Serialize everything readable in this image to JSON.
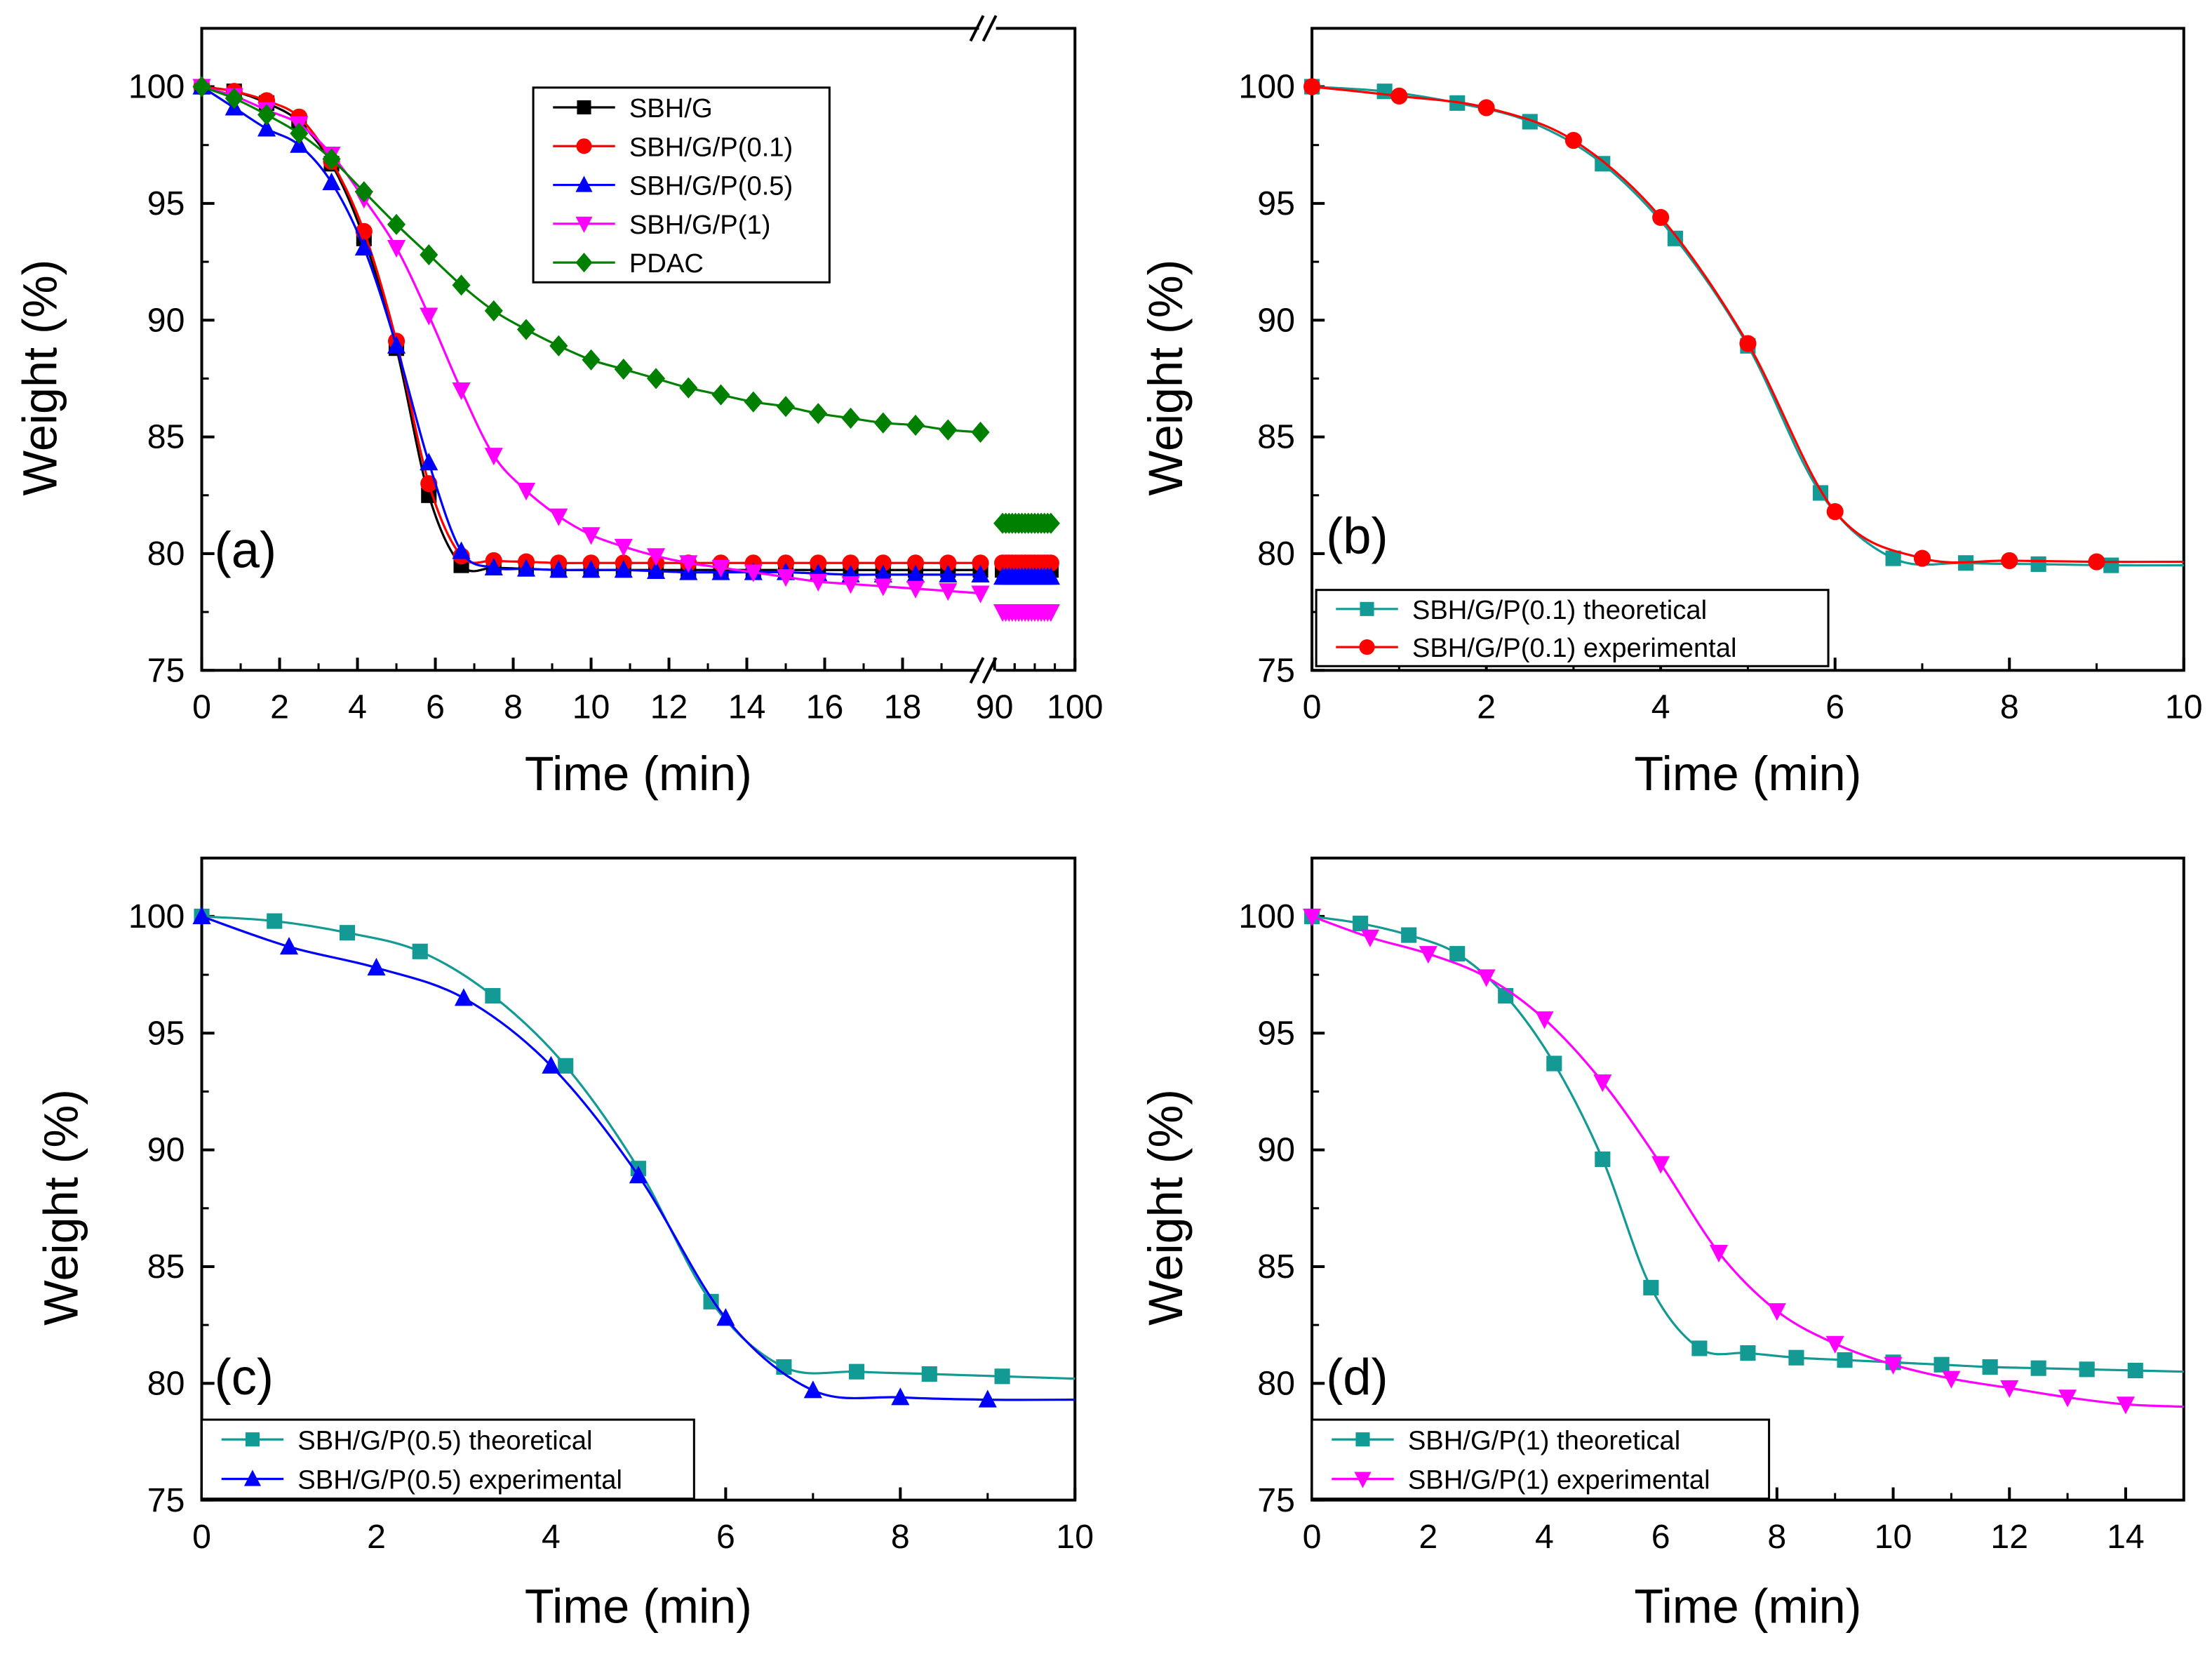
{
  "chart_data": [
    {
      "type": "line",
      "panel_label": "(a)",
      "xlabel": "Time (min)",
      "ylabel": "Weight (%)",
      "xlim_segments": [
        [
          0,
          20
        ],
        [
          90,
          100
        ]
      ],
      "ylim": [
        75,
        102.5
      ],
      "xticks": [
        "0",
        "2",
        "4",
        "6",
        "8",
        "10",
        "12",
        "14",
        "16",
        "18",
        "90",
        "100"
      ],
      "yticks": [
        "75",
        "80",
        "85",
        "90",
        "95",
        "100"
      ],
      "legend_position": "top-center",
      "series": [
        {
          "name": "SBH/G",
          "color": "#000000",
          "marker": "square",
          "y": [
            100,
            99.8,
            99.3,
            98.5,
            96.7,
            93.5,
            88.8,
            82.5,
            79.5,
            79.4,
            79.35,
            79.3,
            79.3,
            79.3,
            79.3,
            79.3,
            79.3,
            79.3,
            79.3,
            79.3,
            79.3,
            79.3,
            79.3,
            79.3,
            79.3
          ],
          "break_y": 79.3
        },
        {
          "name": "SBH/G/P(0.1)",
          "color": "#ff0000",
          "marker": "circle",
          "y": [
            100,
            99.8,
            99.4,
            98.7,
            96.8,
            93.8,
            89.1,
            83.0,
            79.9,
            79.7,
            79.65,
            79.6,
            79.6,
            79.6,
            79.6,
            79.6,
            79.6,
            79.6,
            79.6,
            79.6,
            79.6,
            79.6,
            79.6,
            79.6,
            79.6
          ],
          "break_y": 79.6
        },
        {
          "name": "SBH/G/P(0.5)",
          "color": "#0000ff",
          "marker": "triangle-up",
          "y": [
            100,
            99.1,
            98.2,
            97.5,
            95.9,
            93.1,
            88.9,
            83.9,
            80.1,
            79.4,
            79.35,
            79.3,
            79.3,
            79.3,
            79.25,
            79.2,
            79.2,
            79.2,
            79.2,
            79.15,
            79.1,
            79.1,
            79.1,
            79.1,
            79.1
          ],
          "break_y": 79.0
        },
        {
          "name": "SBH/G/P(1)",
          "color": "#ff00ff",
          "marker": "triangle-down",
          "y": [
            100,
            99.6,
            99.0,
            98.4,
            97.1,
            95.2,
            93.1,
            90.2,
            87.0,
            84.2,
            82.7,
            81.6,
            80.8,
            80.3,
            79.9,
            79.6,
            79.4,
            79.2,
            79.0,
            78.8,
            78.7,
            78.6,
            78.5,
            78.4,
            78.3
          ],
          "break_y": 77.5
        },
        {
          "name": "PDAC",
          "color": "#008000",
          "marker": "diamond",
          "y": [
            100,
            99.5,
            98.8,
            98.0,
            96.9,
            95.5,
            94.1,
            92.8,
            91.5,
            90.4,
            89.6,
            88.9,
            88.3,
            87.9,
            87.5,
            87.1,
            86.8,
            86.5,
            86.3,
            86.0,
            85.8,
            85.6,
            85.5,
            85.3,
            85.2
          ],
          "break_y": 81.3
        }
      ],
      "x": [
        0,
        0.833,
        1.667,
        2.5,
        3.333,
        4.167,
        5,
        5.833,
        6.667,
        7.5,
        8.333,
        9.167,
        10,
        10.833,
        11.667,
        12.5,
        13.333,
        14.167,
        15,
        15.833,
        16.667,
        17.5,
        18.333,
        19.167,
        20
      ],
      "break_x_range": [
        91,
        97
      ]
    },
    {
      "type": "line",
      "panel_label": "(b)",
      "xlabel": "Time (min)",
      "ylabel": "Weight (%)",
      "xlim": [
        0,
        10
      ],
      "ylim": [
        75,
        102.5
      ],
      "xticks": [
        "0",
        "2",
        "4",
        "6",
        "8",
        "10"
      ],
      "yticks": [
        "75",
        "80",
        "85",
        "90",
        "95",
        "100"
      ],
      "legend_position": "bottom-left",
      "series": [
        {
          "name": "SBH/G/P(0.1) theoretical",
          "color": "#139a94",
          "marker": "square",
          "x": [
            0,
            0.833,
            1.667,
            2.5,
            3.333,
            4.167,
            5,
            5.833,
            6.667,
            7.5,
            8.333,
            9.167
          ],
          "y": [
            100,
            99.8,
            99.3,
            98.5,
            96.7,
            93.5,
            88.9,
            82.6,
            79.8,
            79.6,
            79.55,
            79.5
          ],
          "curve_end_y": 79.5
        },
        {
          "name": "SBH/G/P(0.1) experimental",
          "color": "#ff0000",
          "marker": "circle",
          "x": [
            0,
            1,
            2,
            3,
            4,
            5,
            6,
            7,
            8,
            9
          ],
          "y": [
            100,
            99.6,
            99.1,
            97.7,
            94.4,
            89.0,
            81.8,
            79.8,
            79.7,
            79.65
          ],
          "curve_end_y": 79.65
        }
      ]
    },
    {
      "type": "line",
      "panel_label": "(c)",
      "xlabel": "Time (min)",
      "ylabel": "Weight (%)",
      "xlim": [
        0,
        10
      ],
      "ylim": [
        75,
        102.5
      ],
      "xticks": [
        "0",
        "2",
        "4",
        "6",
        "8",
        "10"
      ],
      "yticks": [
        "75",
        "80",
        "85",
        "90",
        "95",
        "100"
      ],
      "legend_position": "bottom-left",
      "series": [
        {
          "name": "SBH/G/P(0.5) theoretical",
          "color": "#139a94",
          "marker": "square",
          "x": [
            0,
            0.833,
            1.667,
            2.5,
            3.333,
            4.167,
            5,
            5.833,
            6.667,
            7.5,
            8.333,
            9.167
          ],
          "y": [
            100,
            99.8,
            99.3,
            98.5,
            96.6,
            93.6,
            89.2,
            83.5,
            80.7,
            80.5,
            80.4,
            80.3
          ],
          "curve_end_y": 80.2
        },
        {
          "name": "SBH/G/P(0.5) experimental",
          "color": "#0000ff",
          "marker": "triangle-up",
          "x": [
            0,
            1,
            2,
            3,
            4,
            5,
            6,
            7,
            8,
            9
          ],
          "y": [
            100,
            98.7,
            97.8,
            96.5,
            93.6,
            88.9,
            82.8,
            79.7,
            79.4,
            79.3
          ],
          "curve_end_y": 79.3
        }
      ]
    },
    {
      "type": "line",
      "panel_label": "(d)",
      "xlabel": "Time (min)",
      "ylabel": "Weight (%)",
      "xlim": [
        0,
        15
      ],
      "ylim": [
        75,
        102.5
      ],
      "xticks": [
        "0",
        "2",
        "4",
        "6",
        "8",
        "10",
        "12",
        "14"
      ],
      "yticks": [
        "75",
        "80",
        "85",
        "90",
        "95",
        "100"
      ],
      "legend_position": "bottom-left",
      "series": [
        {
          "name": "SBH/G/P(1) theoretical",
          "color": "#139a94",
          "marker": "square",
          "x": [
            0,
            0.833,
            1.667,
            2.5,
            3.333,
            4.167,
            5,
            5.833,
            6.667,
            7.5,
            8.333,
            9.167,
            10,
            10.833,
            11.667,
            12.5,
            13.333,
            14.167
          ],
          "y": [
            100,
            99.7,
            99.2,
            98.4,
            96.6,
            93.7,
            89.6,
            84.1,
            81.5,
            81.3,
            81.1,
            81.0,
            80.9,
            80.8,
            80.7,
            80.65,
            80.6,
            80.55
          ],
          "curve_end_y": 80.5
        },
        {
          "name": "SBH/G/P(1) experimental",
          "color": "#ff00ff",
          "marker": "triangle-down",
          "x": [
            0,
            1,
            2,
            3,
            4,
            5,
            6,
            7,
            8,
            9,
            10,
            11,
            12,
            13,
            14
          ],
          "y": [
            100,
            99.1,
            98.4,
            97.4,
            95.6,
            92.9,
            89.4,
            85.6,
            83.1,
            81.7,
            80.8,
            80.2,
            79.8,
            79.4,
            79.1
          ],
          "curve_end_y": 79.0
        }
      ]
    }
  ]
}
